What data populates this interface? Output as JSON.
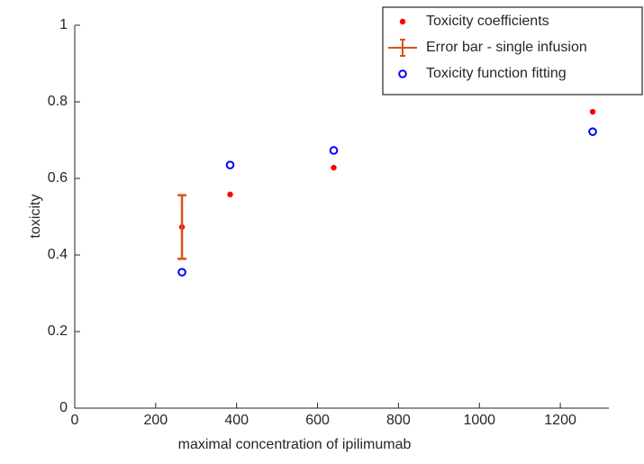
{
  "chart_data": {
    "type": "scatter",
    "xlabel": "maximal concentration of ipilimumab",
    "ylabel": "toxicity",
    "xlim": [
      0,
      1320
    ],
    "ylim": [
      0,
      1
    ],
    "xticks": [
      0,
      200,
      400,
      600,
      800,
      1000,
      1200
    ],
    "yticks": [
      0,
      0.2,
      0.4,
      0.6,
      0.8,
      1
    ],
    "legend_position": "upper-right",
    "series": [
      {
        "name": "Toxicity coefficients",
        "color": "#ff0000",
        "marker": "dot",
        "x": [
          265,
          384,
          640,
          1280
        ],
        "values": [
          0.473,
          0.558,
          0.628,
          0.774
        ]
      },
      {
        "name": "Error bar - single infusion",
        "color": "#d95319",
        "marker": "errorbar",
        "x": [
          265
        ],
        "values": [
          0.473
        ],
        "errors": [
          0.083
        ]
      },
      {
        "name": "Toxicity function fitting",
        "color": "#0000ff",
        "marker": "circle",
        "x": [
          265,
          384,
          640,
          1280
        ],
        "values": [
          0.355,
          0.635,
          0.673,
          0.722
        ]
      }
    ]
  }
}
